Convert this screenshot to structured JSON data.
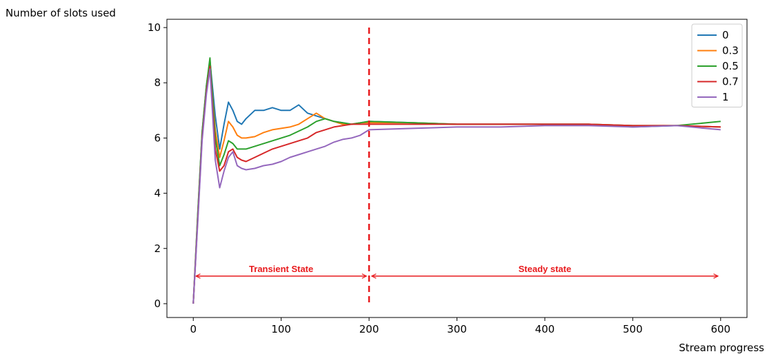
{
  "chart_data": {
    "type": "line",
    "title": "",
    "xlabel": "Stream progress",
    "ylabel": "Number of slots used",
    "xlim": [
      -30,
      630
    ],
    "ylim": [
      -0.5,
      10.3
    ],
    "xticks": [
      0,
      100,
      200,
      300,
      400,
      500,
      600
    ],
    "yticks": [
      0,
      2,
      4,
      6,
      8,
      10
    ],
    "grid": false,
    "legend_position": "top-right",
    "series": [
      {
        "name": "0",
        "color": "#1f77b4",
        "x": [
          0,
          5,
          10,
          15,
          19,
          25,
          30,
          35,
          40,
          45,
          50,
          55,
          60,
          70,
          80,
          90,
          100,
          110,
          120,
          130,
          140,
          150,
          160,
          170,
          180,
          190,
          200,
          250,
          300,
          350,
          400,
          450,
          500,
          550,
          600
        ],
        "y": [
          0,
          3.2,
          6.2,
          7.9,
          8.8,
          6.8,
          5.6,
          6.5,
          7.3,
          7.0,
          6.6,
          6.5,
          6.7,
          7.0,
          7.0,
          7.1,
          7.0,
          7.0,
          7.2,
          6.9,
          6.8,
          6.7,
          6.6,
          6.55,
          6.5,
          6.55,
          6.6,
          6.55,
          6.5,
          6.5,
          6.5,
          6.5,
          6.4,
          6.45,
          6.4
        ]
      },
      {
        "name": "0.3",
        "color": "#ff7f0e",
        "x": [
          0,
          5,
          10,
          15,
          19,
          25,
          30,
          35,
          40,
          45,
          50,
          55,
          60,
          70,
          80,
          90,
          100,
          110,
          120,
          130,
          140,
          150,
          160,
          170,
          180,
          190,
          200,
          250,
          300,
          350,
          400,
          450,
          500,
          550,
          600
        ],
        "y": [
          0,
          3.1,
          6.1,
          7.8,
          8.7,
          6.3,
          5.3,
          5.9,
          6.6,
          6.4,
          6.1,
          6.0,
          6.0,
          6.05,
          6.2,
          6.3,
          6.35,
          6.4,
          6.5,
          6.7,
          6.9,
          6.7,
          6.6,
          6.5,
          6.5,
          6.55,
          6.55,
          6.55,
          6.5,
          6.5,
          6.5,
          6.5,
          6.45,
          6.45,
          6.4
        ]
      },
      {
        "name": "0.5",
        "color": "#2ca02c",
        "x": [
          0,
          5,
          10,
          15,
          19,
          25,
          30,
          35,
          40,
          45,
          50,
          55,
          60,
          70,
          80,
          90,
          100,
          110,
          120,
          130,
          140,
          150,
          160,
          170,
          180,
          190,
          200,
          250,
          300,
          350,
          400,
          450,
          500,
          550,
          600
        ],
        "y": [
          0,
          3.2,
          6.2,
          7.9,
          8.9,
          6.0,
          5.0,
          5.4,
          5.9,
          5.8,
          5.6,
          5.6,
          5.6,
          5.7,
          5.8,
          5.9,
          6.0,
          6.1,
          6.25,
          6.4,
          6.6,
          6.7,
          6.6,
          6.55,
          6.5,
          6.55,
          6.6,
          6.55,
          6.5,
          6.5,
          6.5,
          6.5,
          6.45,
          6.45,
          6.6
        ]
      },
      {
        "name": "0.7",
        "color": "#d62728",
        "x": [
          0,
          5,
          10,
          15,
          19,
          25,
          30,
          35,
          40,
          45,
          50,
          55,
          60,
          70,
          80,
          90,
          100,
          110,
          120,
          130,
          140,
          150,
          160,
          170,
          180,
          190,
          200,
          250,
          300,
          350,
          400,
          450,
          500,
          550,
          600
        ],
        "y": [
          0,
          3.0,
          6.0,
          7.7,
          8.6,
          5.6,
          4.8,
          5.0,
          5.5,
          5.6,
          5.3,
          5.2,
          5.15,
          5.3,
          5.45,
          5.6,
          5.7,
          5.8,
          5.9,
          6.0,
          6.2,
          6.3,
          6.4,
          6.45,
          6.5,
          6.5,
          6.5,
          6.5,
          6.5,
          6.5,
          6.5,
          6.5,
          6.45,
          6.45,
          6.4
        ]
      },
      {
        "name": "1",
        "color": "#9467bd",
        "x": [
          0,
          5,
          10,
          15,
          19,
          25,
          30,
          35,
          40,
          45,
          50,
          55,
          60,
          70,
          80,
          90,
          100,
          110,
          120,
          130,
          140,
          150,
          160,
          170,
          180,
          190,
          200,
          250,
          300,
          350,
          400,
          450,
          500,
          550,
          600
        ],
        "y": [
          0,
          2.9,
          5.9,
          7.6,
          8.5,
          5.2,
          4.2,
          4.8,
          5.3,
          5.5,
          5.0,
          4.9,
          4.85,
          4.9,
          5.0,
          5.05,
          5.15,
          5.3,
          5.4,
          5.5,
          5.6,
          5.7,
          5.85,
          5.95,
          6.0,
          6.1,
          6.3,
          6.35,
          6.4,
          6.4,
          6.45,
          6.45,
          6.4,
          6.45,
          6.3
        ]
      }
    ],
    "annotations": [
      {
        "type": "vline",
        "x": 200,
        "y_from": 0,
        "y_to": 10,
        "color": "#e8191c",
        "style": "dashed"
      },
      {
        "type": "double-arrow",
        "x_from": 3,
        "x_to": 197,
        "y": 1,
        "color": "#e8191c",
        "label": "Transient State"
      },
      {
        "type": "double-arrow",
        "x_from": 203,
        "x_to": 597,
        "y": 1,
        "color": "#e8191c",
        "label": "Steady state"
      }
    ]
  }
}
